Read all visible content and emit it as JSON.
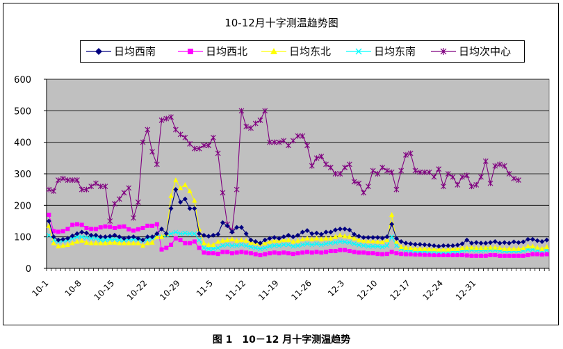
{
  "chart_data": {
    "type": "line",
    "title": "10-12月十字测温趋势图",
    "caption": "图 1　10－12 月十字测温趋势",
    "xlabel": "",
    "ylabel": "",
    "ylim": [
      0,
      600
    ],
    "yticks": [
      0,
      100,
      200,
      300,
      400,
      500,
      600
    ],
    "grid": true,
    "legend_position": "top",
    "x_tick_labels": [
      "10-1",
      "10-8",
      "10-15",
      "10-22",
      "10-29",
      "11-5",
      "11-12",
      "11-19",
      "11-26",
      "12-3",
      "12-10",
      "12-17",
      "12-24",
      "12-31"
    ],
    "colors": {
      "plot_background": "#c0c0c0",
      "gridline": "#000000"
    },
    "series": [
      {
        "name": "日均西南",
        "color": "#000080",
        "marker": "diamond",
        "values": [
          150,
          100,
          90,
          92,
          95,
          103,
          110,
          115,
          112,
          105,
          105,
          100,
          100,
          102,
          105,
          100,
          95,
          98,
          100,
          95,
          90,
          100,
          100,
          110,
          125,
          110,
          190,
          250,
          210,
          220,
          190,
          190,
          110,
          105,
          102,
          105,
          108,
          145,
          135,
          115,
          130,
          130,
          110,
          90,
          85,
          80,
          90,
          95,
          98,
          95,
          100,
          105,
          100,
          105,
          115,
          120,
          110,
          112,
          108,
          115,
          115,
          122,
          125,
          125,
          122,
          108,
          102,
          98,
          98,
          98,
          98,
          96,
          100,
          140,
          95,
          85,
          80,
          78,
          76,
          76,
          75,
          74,
          72,
          70,
          72,
          72,
          72,
          74,
          78,
          90,
          80,
          82,
          80,
          80,
          82,
          85,
          80,
          82,
          80,
          84,
          82,
          84,
          92,
          92,
          88,
          85,
          90
        ]
      },
      {
        "name": "日均西北",
        "color": "#ff00ff",
        "marker": "square",
        "values": [
          170,
          118,
          116,
          118,
          125,
          138,
          140,
          138,
          128,
          125,
          125,
          130,
          133,
          132,
          128,
          132,
          133,
          124,
          120,
          124,
          128,
          135,
          135,
          140,
          60,
          65,
          75,
          95,
          90,
          80,
          80,
          85,
          65,
          50,
          48,
          48,
          46,
          52,
          52,
          48,
          50,
          52,
          50,
          48,
          45,
          42,
          45,
          48,
          50,
          48,
          50,
          48,
          46,
          48,
          50,
          52,
          50,
          52,
          50,
          52,
          55,
          55,
          58,
          58,
          55,
          52,
          50,
          50,
          48,
          48,
          46,
          45,
          46,
          52,
          48,
          46,
          45,
          45,
          44,
          44,
          43,
          43,
          42,
          42,
          42,
          42,
          42,
          42,
          42,
          41,
          40,
          40,
          40,
          40,
          42,
          42,
          40,
          40,
          40,
          40,
          40,
          40,
          42,
          45,
          45,
          44,
          45
        ]
      },
      {
        "name": "日均东北",
        "color": "#ffff00",
        "marker": "triangle",
        "values": [
          135,
          80,
          70,
          72,
          75,
          80,
          85,
          88,
          82,
          80,
          80,
          80,
          80,
          82,
          82,
          80,
          80,
          80,
          80,
          80,
          72,
          80,
          82,
          100,
          100,
          110,
          230,
          280,
          255,
          265,
          245,
          215,
          125,
          80,
          75,
          75,
          85,
          88,
          90,
          92,
          88,
          90,
          88,
          82,
          80,
          78,
          80,
          85,
          88,
          88,
          90,
          90,
          85,
          88,
          92,
          95,
          92,
          95,
          92,
          95,
          95,
          100,
          105,
          102,
          100,
          95,
          90,
          88,
          86,
          86,
          85,
          84,
          90,
          170,
          85,
          68,
          65,
          64,
          62,
          62,
          62,
          61,
          61,
          60,
          60,
          60,
          62,
          62,
          64,
          65,
          66,
          64,
          64,
          65,
          66,
          66,
          64,
          62,
          62,
          62,
          62,
          64,
          70,
          70,
          66,
          62,
          68
        ]
      },
      {
        "name": "日均东南",
        "color": "#00ffff",
        "marker": "x",
        "values": [
          105,
          90,
          85,
          88,
          90,
          95,
          100,
          100,
          98,
          95,
          95,
          90,
          90,
          92,
          92,
          90,
          90,
          92,
          92,
          92,
          88,
          92,
          95,
          100,
          100,
          105,
          110,
          115,
          110,
          112,
          110,
          110,
          90,
          65,
          62,
          62,
          65,
          72,
          75,
          72,
          72,
          75,
          72,
          68,
          65,
          62,
          65,
          70,
          72,
          72,
          75,
          75,
          70,
          72,
          75,
          78,
          75,
          78,
          75,
          78,
          80,
          82,
          85,
          84,
          82,
          78,
          74,
          72,
          70,
          70,
          70,
          68,
          72,
          100,
          72,
          62,
          58,
          56,
          55,
          55,
          55,
          54,
          54,
          53,
          53,
          53,
          54,
          54,
          56,
          58,
          58,
          56,
          56,
          57,
          58,
          58,
          56,
          55,
          55,
          55,
          55,
          56,
          60,
          60,
          58,
          56,
          58
        ]
      },
      {
        "name": "日均次中心",
        "color": "#800080",
        "marker": "star",
        "values": [
          250,
          245,
          280,
          285,
          280,
          280,
          280,
          250,
          250,
          260,
          270,
          260,
          260,
          150,
          205,
          220,
          240,
          255,
          160,
          210,
          400,
          440,
          370,
          330,
          470,
          475,
          480,
          440,
          425,
          415,
          395,
          380,
          380,
          390,
          390,
          415,
          365,
          240,
          140,
          120,
          250,
          500,
          450,
          445,
          460,
          470,
          500,
          400,
          400,
          400,
          405,
          390,
          405,
          420,
          420,
          390,
          325,
          350,
          355,
          330,
          320,
          300,
          300,
          320,
          330,
          275,
          270,
          240,
          260,
          310,
          300,
          320,
          310,
          305,
          250,
          310,
          360,
          365,
          310,
          305,
          305,
          305,
          290,
          315,
          260,
          300,
          290,
          265,
          290,
          295,
          260,
          265,
          290,
          340,
          270,
          325,
          330,
          325,
          300,
          285,
          280
        ]
      }
    ]
  }
}
